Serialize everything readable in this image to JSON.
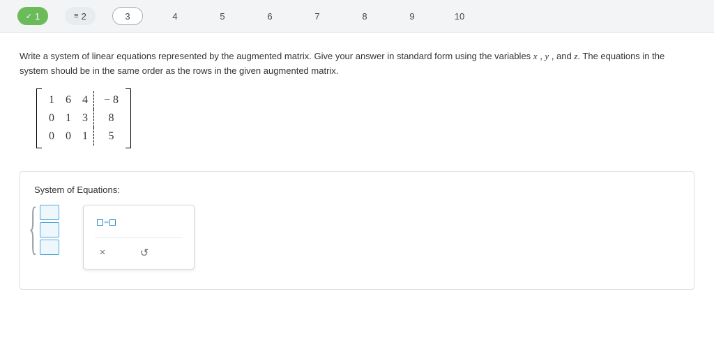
{
  "nav": {
    "items": [
      {
        "label": "1",
        "state": "done",
        "icon": "check"
      },
      {
        "label": "2",
        "state": "current",
        "icon": "equiv"
      },
      {
        "label": "3",
        "state": "outlined",
        "icon": ""
      },
      {
        "label": "4",
        "state": "",
        "icon": ""
      },
      {
        "label": "5",
        "state": "",
        "icon": ""
      },
      {
        "label": "6",
        "state": "",
        "icon": ""
      },
      {
        "label": "7",
        "state": "",
        "icon": ""
      },
      {
        "label": "8",
        "state": "",
        "icon": ""
      },
      {
        "label": "9",
        "state": "",
        "icon": ""
      },
      {
        "label": "10",
        "state": "",
        "icon": ""
      }
    ]
  },
  "prompt": {
    "text_a": "Write a system of linear equations represented by the augmented matrix. Give your answer in standard form using the variables ",
    "var1": "x",
    "comma1": " , ",
    "var2": "y",
    "comma2": " ,  and ",
    "var3": "z",
    "period": ". ",
    "text_b": "The equations in the system should be in the same order as the rows in the given augmented matrix."
  },
  "matrix": {
    "rows": [
      {
        "a": "1",
        "b": "6",
        "c": "4",
        "aug": "− 8"
      },
      {
        "a": "0",
        "b": "1",
        "c": "3",
        "aug": "8"
      },
      {
        "a": "0",
        "b": "0",
        "c": "1",
        "aug": "5"
      }
    ]
  },
  "answer": {
    "title": "System of Equations:",
    "template_label_eq": "=",
    "clear_icon": "×",
    "undo_icon": "↺"
  },
  "colors": {
    "nav_bg": "#f2f4f5",
    "done_green": "#6cbb5a",
    "outline_gray": "#a7b0b5",
    "slot_border": "#4fa8d8",
    "slot_fill": "#eef7fc",
    "tool_accent": "#2c8bbd"
  }
}
